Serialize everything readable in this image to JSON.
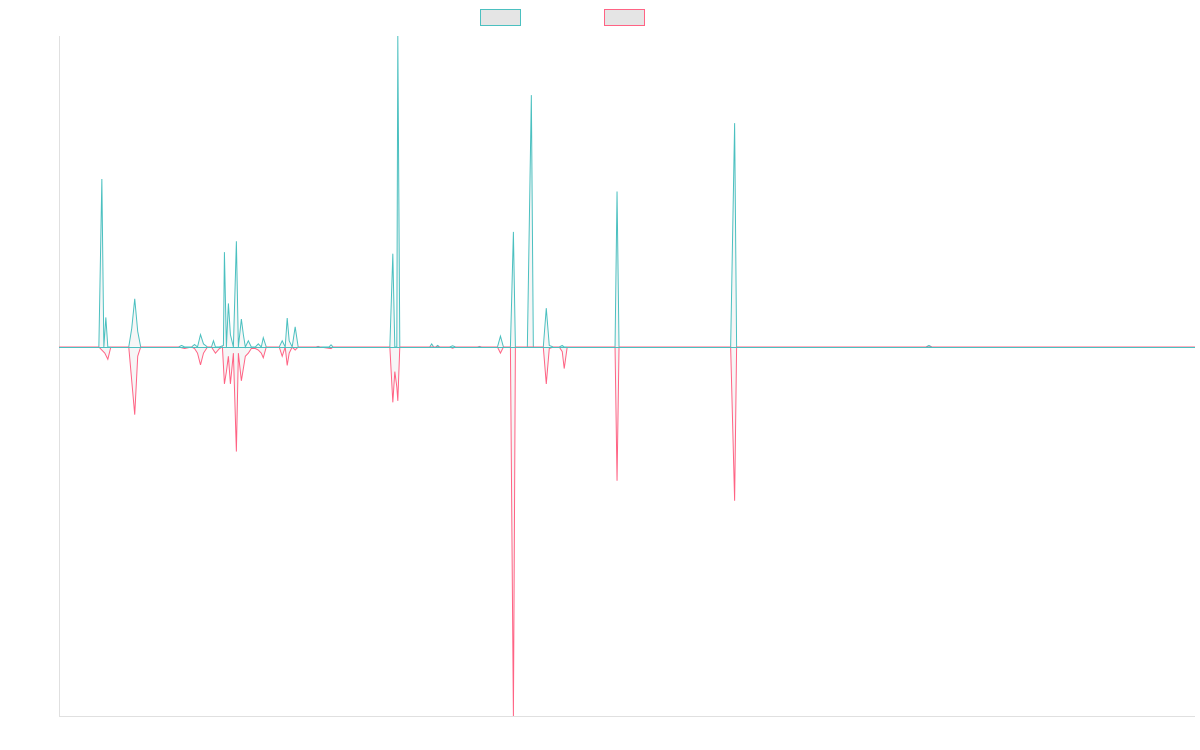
{
  "chart_data": {
    "type": "line",
    "title": "",
    "xlabel": "",
    "ylabel": "",
    "xlim": [
      0,
      1140
    ],
    "ylim": [
      -1.2,
      1.0
    ],
    "grid": false,
    "legend_position": "top-center",
    "series": [
      {
        "color": "#4bc0c0",
        "fill": "#e5e5e5",
        "points": [
          [
            0,
            0
          ],
          [
            40,
            0
          ],
          [
            43,
            0.54
          ],
          [
            45,
            0
          ],
          [
            47,
            0.095
          ],
          [
            49,
            0
          ],
          [
            70,
            0
          ],
          [
            73,
            0.06
          ],
          [
            76,
            0.155
          ],
          [
            79,
            0.05
          ],
          [
            82,
            0
          ],
          [
            120,
            0
          ],
          [
            123,
            0.005
          ],
          [
            126,
            0
          ],
          [
            133,
            0
          ],
          [
            136,
            0.008
          ],
          [
            139,
            0
          ],
          [
            142,
            0.04
          ],
          [
            145,
            0.01
          ],
          [
            149,
            0
          ],
          [
            153,
            0
          ],
          [
            155,
            0.02
          ],
          [
            157,
            0
          ],
          [
            161,
            0
          ],
          [
            165,
            0.005
          ],
          [
            166,
            0.305
          ],
          [
            168,
            0
          ],
          [
            170,
            0.14
          ],
          [
            172,
            0.04
          ],
          [
            175,
            0
          ],
          [
            178,
            0.34
          ],
          [
            180,
            0
          ],
          [
            183,
            0.09
          ],
          [
            185,
            0.04
          ],
          [
            187,
            0
          ],
          [
            190,
            0.02
          ],
          [
            193,
            0
          ],
          [
            197,
            0
          ],
          [
            200,
            0.01
          ],
          [
            203,
            0
          ],
          [
            205,
            0.03
          ],
          [
            208,
            0
          ],
          [
            221,
            0
          ],
          [
            224,
            0.02
          ],
          [
            227,
            0
          ],
          [
            229,
            0.093
          ],
          [
            231,
            0.02
          ],
          [
            234,
            0
          ],
          [
            237,
            0.065
          ],
          [
            240,
            0
          ],
          [
            258,
            0
          ],
          [
            260,
            0.002
          ],
          [
            262,
            0
          ],
          [
            271,
            0
          ],
          [
            273,
            0.007
          ],
          [
            275,
            0
          ],
          [
            332,
            0
          ],
          [
            335,
            0.3
          ],
          [
            337,
            0
          ],
          [
            339,
            0
          ],
          [
            340,
            1.0
          ],
          [
            342,
            0
          ],
          [
            372,
            0
          ],
          [
            374,
            0.01
          ],
          [
            376,
            0
          ],
          [
            378,
            0
          ],
          [
            380,
            0.005
          ],
          [
            382,
            0
          ],
          [
            392,
            0
          ],
          [
            395,
            0.004
          ],
          [
            398,
            0
          ],
          [
            420,
            0
          ],
          [
            422,
            0.002
          ],
          [
            424,
            0
          ],
          [
            440,
            0
          ],
          [
            443,
            0.035
          ],
          [
            446,
            0
          ],
          [
            453,
            0
          ],
          [
            456,
            0.37
          ],
          [
            458,
            0
          ],
          [
            470,
            0
          ],
          [
            474,
            0.81
          ],
          [
            476,
            0
          ],
          [
            486,
            0
          ],
          [
            489,
            0.125
          ],
          [
            492,
            0.005
          ],
          [
            496,
            0
          ],
          [
            502,
            0
          ],
          [
            505,
            0.005
          ],
          [
            507,
            0
          ],
          [
            518,
            0
          ],
          [
            531,
            0
          ],
          [
            558,
            0
          ],
          [
            560,
            0.5
          ],
          [
            562,
            0
          ],
          [
            674,
            0
          ],
          [
            678,
            0.72
          ],
          [
            680,
            0
          ],
          [
            870,
            0
          ],
          [
            873,
            0.005
          ],
          [
            876,
            0
          ],
          [
            1140,
            0
          ]
        ]
      },
      {
        "color": "#ff6384",
        "fill": "#e5e5e5",
        "points": [
          [
            0,
            0
          ],
          [
            40,
            0
          ],
          [
            46,
            -0.02
          ],
          [
            49,
            -0.04
          ],
          [
            52,
            0
          ],
          [
            70,
            0
          ],
          [
            76,
            -0.22
          ],
          [
            79,
            -0.03
          ],
          [
            82,
            0
          ],
          [
            120,
            0
          ],
          [
            126,
            -0.005
          ],
          [
            133,
            0
          ],
          [
            136,
            -0.005
          ],
          [
            139,
            -0.02
          ],
          [
            142,
            -0.058
          ],
          [
            145,
            -0.02
          ],
          [
            149,
            0
          ],
          [
            153,
            0
          ],
          [
            157,
            -0.02
          ],
          [
            161,
            -0.005
          ],
          [
            164,
            0
          ],
          [
            166,
            -0.12
          ],
          [
            168,
            -0.08
          ],
          [
            170,
            -0.03
          ],
          [
            172,
            -0.12
          ],
          [
            175,
            -0.02
          ],
          [
            178,
            -0.34
          ],
          [
            180,
            -0.02
          ],
          [
            183,
            -0.11
          ],
          [
            185,
            -0.07
          ],
          [
            187,
            -0.03
          ],
          [
            190,
            -0.02
          ],
          [
            193,
            -0.005
          ],
          [
            197,
            -0.005
          ],
          [
            200,
            -0.01
          ],
          [
            203,
            -0.02
          ],
          [
            205,
            -0.035
          ],
          [
            208,
            0
          ],
          [
            221,
            0
          ],
          [
            224,
            -0.03
          ],
          [
            227,
            0
          ],
          [
            229,
            -0.06
          ],
          [
            231,
            -0.02
          ],
          [
            234,
            0
          ],
          [
            237,
            -0.01
          ],
          [
            240,
            0
          ],
          [
            262,
            0
          ],
          [
            273,
            -0.005
          ],
          [
            275,
            0
          ],
          [
            332,
            0
          ],
          [
            335,
            -0.18
          ],
          [
            337,
            -0.08
          ],
          [
            339,
            -0.13
          ],
          [
            340,
            -0.175
          ],
          [
            342,
            0
          ],
          [
            372,
            0
          ],
          [
            376,
            0
          ],
          [
            392,
            0
          ],
          [
            395,
            -0.004
          ],
          [
            398,
            0
          ],
          [
            440,
            0
          ],
          [
            443,
            -0.02
          ],
          [
            446,
            0
          ],
          [
            453,
            0
          ],
          [
            456,
            -1.2
          ],
          [
            458,
            0
          ],
          [
            486,
            0
          ],
          [
            489,
            -0.12
          ],
          [
            492,
            -0.005
          ],
          [
            496,
            0
          ],
          [
            502,
            0
          ],
          [
            505,
            -0.015
          ],
          [
            507,
            -0.07
          ],
          [
            510,
            0
          ],
          [
            558,
            0
          ],
          [
            560,
            -0.435
          ],
          [
            562,
            0
          ],
          [
            674,
            0
          ],
          [
            678,
            -0.5
          ],
          [
            680,
            0
          ],
          [
            1140,
            0
          ]
        ]
      }
    ]
  }
}
